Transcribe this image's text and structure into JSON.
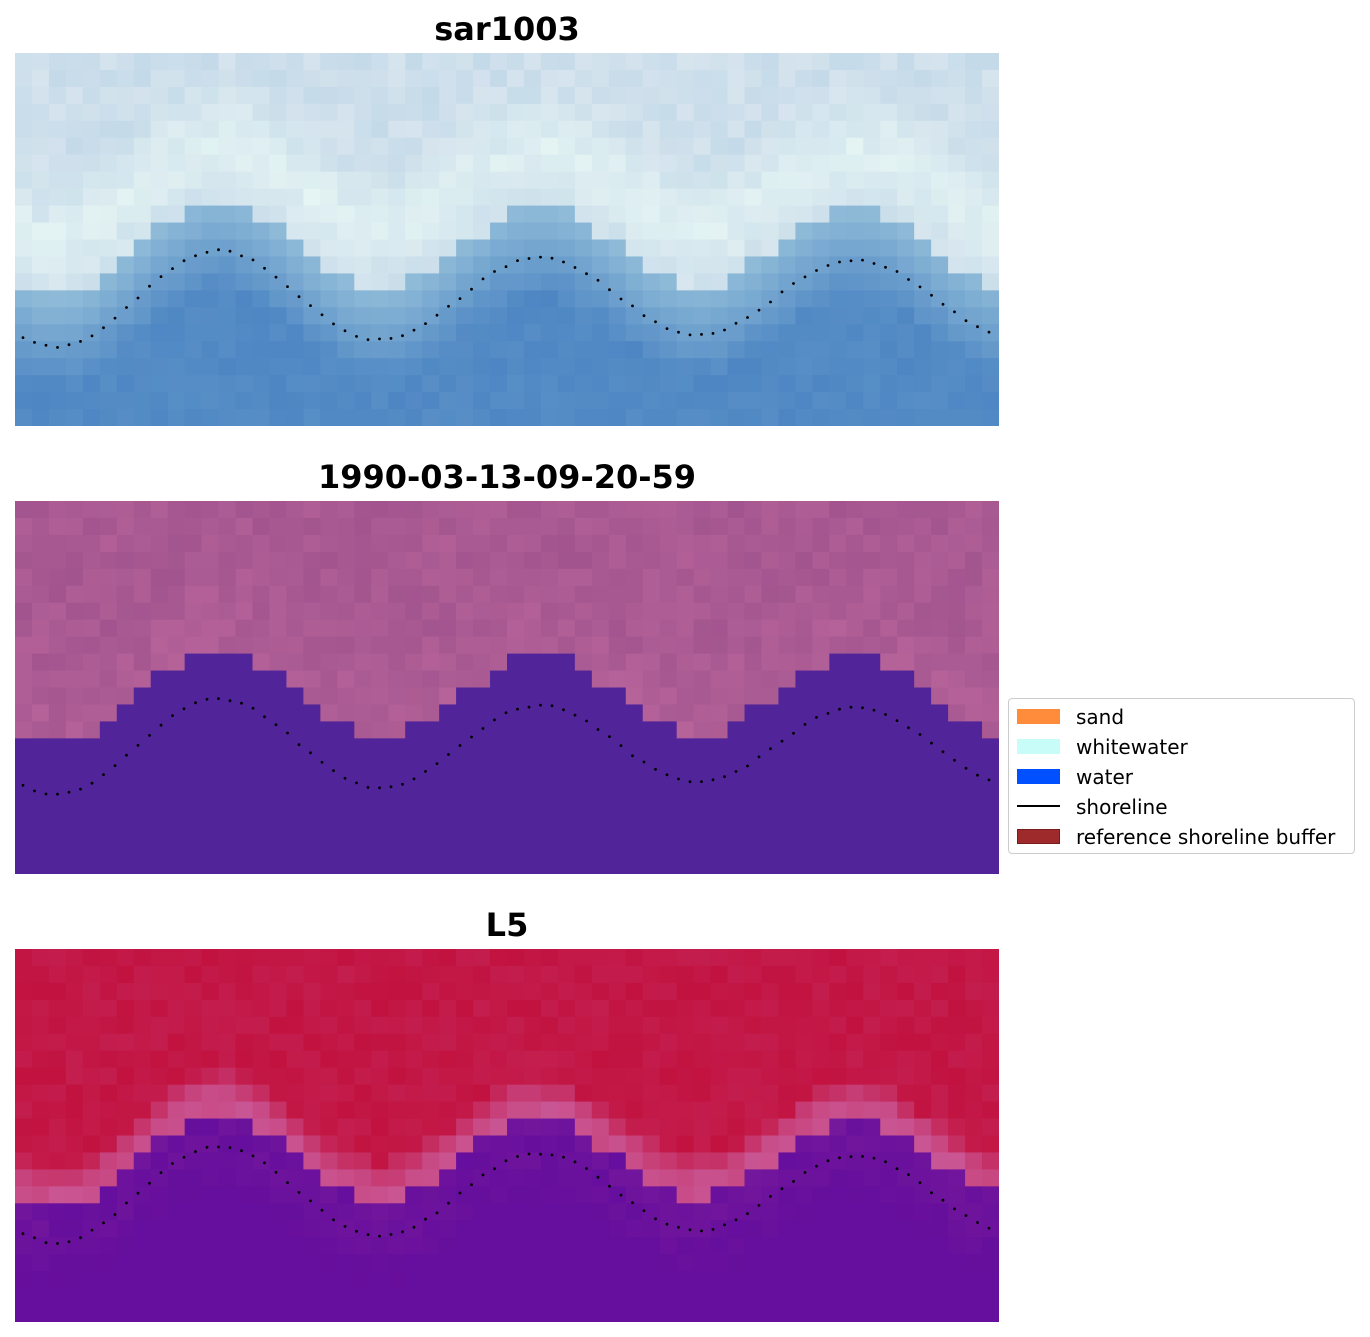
{
  "panels": [
    {
      "title": "sar1003",
      "style": "rgb",
      "colors": {
        "sky": "#d6e4ee",
        "foam": "#e6f6f4",
        "shallow": "#8fbbd8",
        "deep": "#4d86c3"
      }
    },
    {
      "title": "1990-03-13-09-20-59",
      "style": "classified",
      "colors": {
        "land": "#a2548e",
        "land_light": "#b7649a",
        "water": "#51249a"
      }
    },
    {
      "title": "L5",
      "style": "index",
      "colors": {
        "land": "#c2123f",
        "edge": "#c95694",
        "water": "#660e9d"
      }
    }
  ],
  "legend": {
    "items": [
      {
        "label": "sand",
        "kind": "patch",
        "color": "#ff8c3a",
        "edge": "#ff8c3a"
      },
      {
        "label": "whitewater",
        "kind": "patch",
        "color": "#c8fcf8",
        "edge": "#c8fcf8"
      },
      {
        "label": "water",
        "kind": "patch",
        "color": "#0050ff",
        "edge": "#0050ff"
      },
      {
        "label": "shoreline",
        "kind": "line",
        "color": "#000000"
      },
      {
        "label": "reference shoreline buffer",
        "kind": "patch",
        "color": "#9e2a2b",
        "edge": "#7a1c1c"
      }
    ]
  }
}
